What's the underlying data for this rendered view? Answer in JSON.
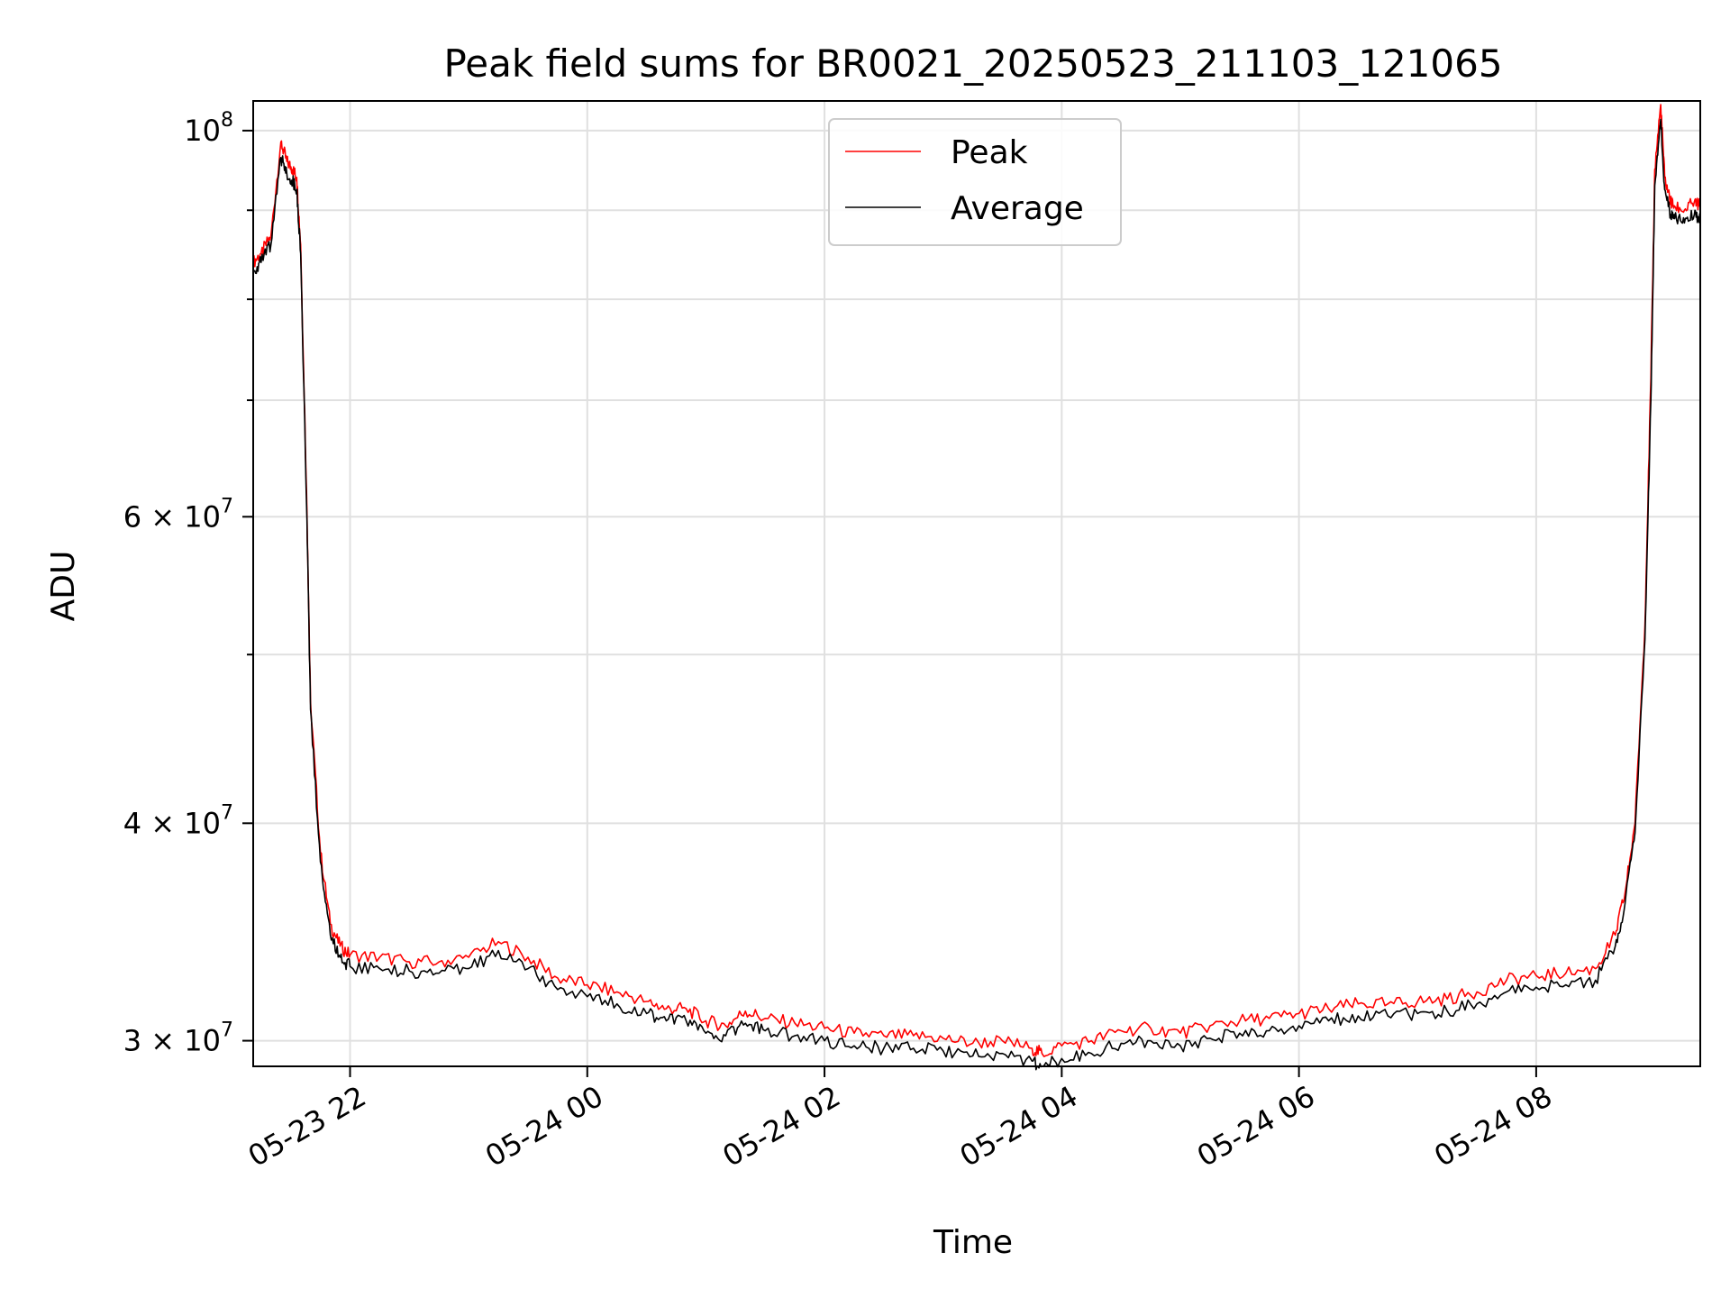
{
  "chart_data": {
    "type": "line",
    "title": "Peak field sums for BR0021_20250523_211103_121065",
    "xlabel": "Time",
    "ylabel": "ADU",
    "yscale": "log",
    "xlim": [
      "2025-05-23 21:11",
      "2025-05-24 09:23"
    ],
    "ylim": [
      29000000,
      104000000
    ],
    "grid": true,
    "legend_position": "top-center",
    "x_ticks": [
      "05-23 22",
      "05-24 00",
      "05-24 02",
      "05-24 04",
      "05-24 06",
      "05-24 08"
    ],
    "y_ticks_major": [
      {
        "value": 100000000,
        "base": "10",
        "exp": "8"
      },
      {
        "value": 60000000,
        "mantissa": "6",
        "base": "10",
        "exp": "7"
      },
      {
        "value": 40000000,
        "mantissa": "4",
        "base": "10",
        "exp": "7"
      },
      {
        "value": 30000000,
        "mantissa": "3",
        "base": "10",
        "exp": "7"
      }
    ],
    "x": [
      "2025-05-23 21:11",
      "2025-05-23 21:15",
      "2025-05-23 21:20",
      "2025-05-23 21:25",
      "2025-05-23 21:28",
      "2025-05-23 21:31",
      "2025-05-23 21:33",
      "2025-05-23 21:35",
      "2025-05-23 21:38",
      "2025-05-23 21:40",
      "2025-05-23 21:45",
      "2025-05-23 21:50",
      "2025-05-23 21:55",
      "2025-05-23 22:00",
      "2025-05-23 22:15",
      "2025-05-23 22:30",
      "2025-05-23 22:45",
      "2025-05-23 23:00",
      "2025-05-23 23:15",
      "2025-05-23 23:30",
      "2025-05-23 23:45",
      "2025-05-24 00:00",
      "2025-05-24 00:15",
      "2025-05-24 00:30",
      "2025-05-24 00:40",
      "2025-05-24 00:50",
      "2025-05-24 01:00",
      "2025-05-24 01:10",
      "2025-05-24 01:20",
      "2025-05-24 01:30",
      "2025-05-24 01:45",
      "2025-05-24 02:00",
      "2025-05-24 02:15",
      "2025-05-24 02:30",
      "2025-05-24 02:45",
      "2025-05-24 03:00",
      "2025-05-24 03:15",
      "2025-05-24 03:30",
      "2025-05-24 03:45",
      "2025-05-24 03:50",
      "2025-05-24 04:00",
      "2025-05-24 04:15",
      "2025-05-24 04:30",
      "2025-05-24 04:45",
      "2025-05-24 05:00",
      "2025-05-24 05:15",
      "2025-05-24 05:30",
      "2025-05-24 05:45",
      "2025-05-24 06:00",
      "2025-05-24 06:15",
      "2025-05-24 06:30",
      "2025-05-24 06:45",
      "2025-05-24 07:00",
      "2025-05-24 07:15",
      "2025-05-24 07:30",
      "2025-05-24 07:45",
      "2025-05-24 08:00",
      "2025-05-24 08:15",
      "2025-05-24 08:30",
      "2025-05-24 08:40",
      "2025-05-24 08:45",
      "2025-05-24 08:50",
      "2025-05-24 08:55",
      "2025-05-24 08:58",
      "2025-05-24 09:00",
      "2025-05-24 09:03",
      "2025-05-24 09:05",
      "2025-05-24 09:08",
      "2025-05-24 09:10",
      "2025-05-24 09:15",
      "2025-05-24 09:20",
      "2025-05-24 09:23"
    ],
    "series": [
      {
        "name": "Peak",
        "color": "#ff0000",
        "values": [
          84000000,
          85000000,
          87000000,
          98500000,
          96000000,
          95000000,
          94000000,
          86000000,
          62000000,
          47000000,
          38500000,
          35000000,
          34000000,
          33600000,
          33500000,
          33300000,
          33300000,
          33500000,
          34200000,
          33500000,
          32600000,
          32300000,
          32000000,
          31600000,
          31300000,
          31300000,
          30800000,
          30600000,
          31200000,
          30900000,
          30700000,
          30500000,
          30300000,
          30200000,
          30200000,
          30100000,
          29900000,
          30000000,
          29700000,
          29500000,
          29800000,
          30000000,
          30400000,
          30500000,
          30300000,
          30600000,
          30800000,
          30900000,
          31100000,
          31300000,
          31500000,
          31500000,
          31600000,
          31700000,
          32000000,
          32500000,
          32700000,
          32800000,
          33000000,
          34500000,
          36500000,
          40000000,
          52000000,
          72000000,
          95000000,
          103500000,
          94000000,
          91000000,
          90500000,
          90000000,
          91000000,
          90500000
        ]
      },
      {
        "name": "Average",
        "color": "#000000",
        "values": [
          83000000,
          84000000,
          86000000,
          96500000,
          94500000,
          93500000,
          92500000,
          85000000,
          61000000,
          46500000,
          38000000,
          34500000,
          33500000,
          33100000,
          33000000,
          32900000,
          32800000,
          33000000,
          33800000,
          33000000,
          32100000,
          31800000,
          31500000,
          31100000,
          30800000,
          30800000,
          30300000,
          30200000,
          30700000,
          30400000,
          30200000,
          30000000,
          29800000,
          29700000,
          29700000,
          29600000,
          29400000,
          29500000,
          29200000,
          29000000,
          29300000,
          29500000,
          29900000,
          30000000,
          29800000,
          30100000,
          30300000,
          30400000,
          30600000,
          30800000,
          31000000,
          31000000,
          31100000,
          31200000,
          31500000,
          32000000,
          32200000,
          32300000,
          32500000,
          34000000,
          36000000,
          39500000,
          51000000,
          70000000,
          93000000,
          101500000,
          92500000,
          89500000,
          89000000,
          88500000,
          89500000,
          89000000
        ]
      }
    ]
  }
}
